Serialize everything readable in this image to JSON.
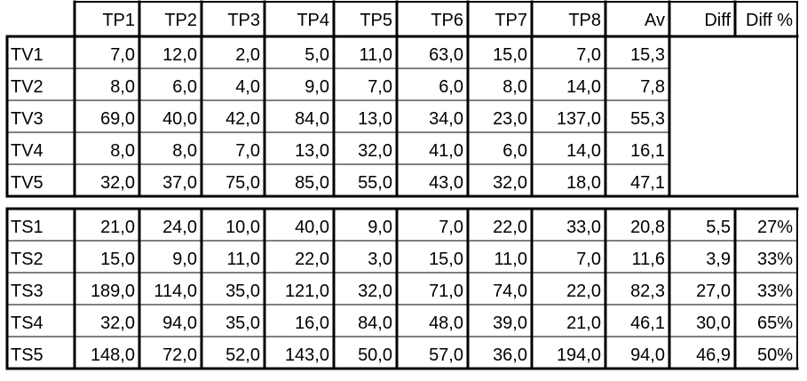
{
  "chart_data": {
    "type": "table",
    "columns": [
      "",
      "TP1",
      "TP2",
      "TP3",
      "TP4",
      "TP5",
      "TP6",
      "TP7",
      "TP8",
      "Av",
      "Diff",
      "Diff %"
    ],
    "sections": [
      {
        "rows": [
          {
            "label": "TV1",
            "cells": [
              "7,0",
              "12,0",
              "2,0",
              "5,0",
              "11,0",
              "63,0",
              "15,0",
              "7,0",
              "15,3",
              "",
              ""
            ]
          },
          {
            "label": "TV2",
            "cells": [
              "8,0",
              "6,0",
              "4,0",
              "9,0",
              "7,0",
              "6,0",
              "8,0",
              "14,0",
              "7,8",
              "",
              ""
            ]
          },
          {
            "label": "TV3",
            "cells": [
              "69,0",
              "40,0",
              "42,0",
              "84,0",
              "13,0",
              "34,0",
              "23,0",
              "137,0",
              "55,3",
              "",
              ""
            ]
          },
          {
            "label": "TV4",
            "cells": [
              "8,0",
              "8,0",
              "7,0",
              "13,0",
              "32,0",
              "41,0",
              "6,0",
              "14,0",
              "16,1",
              "",
              ""
            ]
          },
          {
            "label": "TV5",
            "cells": [
              "32,0",
              "37,0",
              "75,0",
              "85,0",
              "55,0",
              "43,0",
              "32,0",
              "18,0",
              "47,1",
              "",
              ""
            ]
          }
        ]
      },
      {
        "rows": [
          {
            "label": "TS1",
            "cells": [
              "21,0",
              "24,0",
              "10,0",
              "40,0",
              "9,0",
              "7,0",
              "22,0",
              "33,0",
              "20,8",
              "5,5",
              "27%"
            ]
          },
          {
            "label": "TS2",
            "cells": [
              "15,0",
              "9,0",
              "11,0",
              "22,0",
              "3,0",
              "15,0",
              "11,0",
              "7,0",
              "11,6",
              "3,9",
              "33%"
            ]
          },
          {
            "label": "TS3",
            "cells": [
              "189,0",
              "114,0",
              "35,0",
              "121,0",
              "32,0",
              "71,0",
              "74,0",
              "22,0",
              "82,3",
              "27,0",
              "33%"
            ]
          },
          {
            "label": "TS4",
            "cells": [
              "32,0",
              "94,0",
              "35,0",
              "16,0",
              "84,0",
              "48,0",
              "39,0",
              "21,0",
              "46,1",
              "30,0",
              "65%"
            ]
          },
          {
            "label": "TS5",
            "cells": [
              "148,0",
              "72,0",
              "52,0",
              "143,0",
              "50,0",
              "57,0",
              "36,0",
              "194,0",
              "94,0",
              "46,9",
              "50%"
            ]
          }
        ]
      }
    ]
  }
}
